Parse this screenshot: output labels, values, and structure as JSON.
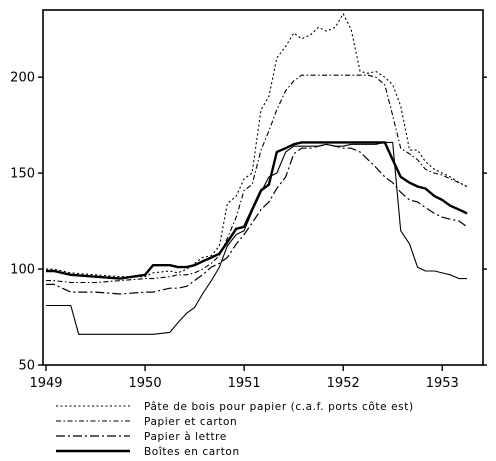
{
  "chart_data": {
    "type": "line",
    "title": "",
    "xlabel": "",
    "ylabel": "",
    "xlim": [
      1949.0,
      1953.3
    ],
    "ylim": [
      50,
      235
    ],
    "y_ticks": [
      50,
      100,
      150,
      200
    ],
    "x_ticks": [
      1949,
      1950,
      1951,
      1952,
      1953
    ],
    "x_tick_labels": [
      "1949",
      "1950",
      "1951",
      "1952",
      "1953"
    ],
    "grid": false,
    "legend_position": "bottom",
    "series": [
      {
        "name": "Pâte de bois pour papier (c.a.f. ports côte est)",
        "style": "dotted",
        "x": [
          1949.0,
          1949.08,
          1949.25,
          1949.5,
          1949.75,
          1950.0,
          1950.08,
          1950.25,
          1950.33,
          1950.42,
          1950.5,
          1950.58,
          1950.67,
          1950.75,
          1950.83,
          1950.92,
          1951.0,
          1951.08,
          1951.17,
          1951.25,
          1951.33,
          1951.42,
          1951.5,
          1951.58,
          1951.67,
          1951.75,
          1951.83,
          1951.92,
          1952.0,
          1952.08,
          1952.17,
          1952.25,
          1952.33,
          1952.42,
          1952.5,
          1952.58,
          1952.67,
          1952.75,
          1952.83,
          1952.92,
          1953.0,
          1953.08,
          1953.17,
          1953.25
        ],
        "values": [
          100,
          100,
          98,
          97,
          96,
          96,
          98,
          99,
          98,
          100,
          103,
          106,
          107,
          112,
          134,
          138,
          147,
          150,
          183,
          190,
          210,
          216,
          223,
          220,
          222,
          226,
          224,
          226,
          233,
          225,
          203,
          202,
          203,
          200,
          196,
          185,
          162,
          162,
          156,
          152,
          150,
          148,
          145,
          143
        ]
      },
      {
        "name": "Papier et carton",
        "style": "dashdot-short",
        "x": [
          1949.0,
          1949.08,
          1949.25,
          1949.5,
          1949.75,
          1950.0,
          1950.08,
          1950.25,
          1950.33,
          1950.42,
          1950.5,
          1950.58,
          1950.67,
          1950.75,
          1950.83,
          1950.92,
          1951.0,
          1951.08,
          1951.17,
          1951.25,
          1951.33,
          1951.42,
          1951.5,
          1951.58,
          1951.67,
          1951.75,
          1951.83,
          1951.92,
          1952.0,
          1952.08,
          1952.17,
          1952.25,
          1952.33,
          1952.42,
          1952.5,
          1952.58,
          1952.67,
          1952.75,
          1952.83,
          1952.92,
          1953.0,
          1953.08,
          1953.17,
          1953.25
        ],
        "values": [
          94,
          94,
          93,
          93,
          94,
          95,
          95,
          96,
          97,
          97,
          98,
          100,
          103,
          107,
          116,
          127,
          141,
          144,
          162,
          172,
          183,
          193,
          198,
          201,
          201,
          201,
          201,
          201,
          201,
          201,
          201,
          201,
          200,
          196,
          180,
          163,
          160,
          157,
          152,
          150,
          149,
          147,
          145,
          143
        ]
      },
      {
        "name": "Papier à lettre",
        "style": "dashdot-long",
        "x": [
          1949.0,
          1949.08,
          1949.25,
          1949.5,
          1949.75,
          1950.0,
          1950.08,
          1950.25,
          1950.33,
          1950.42,
          1950.5,
          1950.58,
          1950.67,
          1950.75,
          1950.83,
          1950.92,
          1951.0,
          1951.08,
          1951.17,
          1951.25,
          1951.33,
          1951.42,
          1951.5,
          1951.58,
          1951.67,
          1951.75,
          1951.83,
          1951.92,
          1952.0,
          1952.08,
          1952.17,
          1952.25,
          1952.33,
          1952.42,
          1952.5,
          1952.58,
          1952.67,
          1952.75,
          1952.83,
          1952.92,
          1953.0,
          1953.08,
          1953.17,
          1953.25
        ],
        "values": [
          92,
          92,
          88,
          88,
          87,
          88,
          88,
          90,
          90,
          91,
          94,
          97,
          101,
          103,
          106,
          113,
          118,
          124,
          131,
          135,
          142,
          148,
          160,
          163,
          163,
          164,
          165,
          164,
          163,
          163,
          161,
          157,
          153,
          148,
          145,
          140,
          136,
          135,
          132,
          129,
          127,
          126,
          125,
          122
        ]
      },
      {
        "name": "Boîtes en carton",
        "style": "bold",
        "x": [
          1949.0,
          1949.08,
          1949.25,
          1949.5,
          1949.75,
          1950.0,
          1950.08,
          1950.25,
          1950.33,
          1950.42,
          1950.5,
          1950.58,
          1950.67,
          1950.75,
          1950.83,
          1950.92,
          1951.0,
          1951.08,
          1951.17,
          1951.25,
          1951.33,
          1951.42,
          1951.5,
          1951.58,
          1951.67,
          1951.75,
          1951.83,
          1951.92,
          1952.0,
          1952.08,
          1952.17,
          1952.25,
          1952.33,
          1952.42,
          1952.5,
          1952.58,
          1952.67,
          1952.75,
          1952.83,
          1952.92,
          1953.0,
          1953.08,
          1953.17,
          1953.25
        ],
        "values": [
          99,
          99,
          97,
          96,
          95,
          97,
          102,
          102,
          101,
          101,
          102,
          104,
          106,
          108,
          114,
          121,
          122,
          131,
          141,
          144,
          161,
          163,
          165,
          166,
          166,
          166,
          166,
          166,
          166,
          166,
          166,
          166,
          166,
          166,
          157,
          148,
          145,
          143,
          142,
          138,
          136,
          133,
          131,
          129
        ]
      },
      {
        "name": "",
        "style": "thin",
        "x": [
          1949.0,
          1949.08,
          1949.25,
          1949.33,
          1949.5,
          1949.75,
          1950.0,
          1950.08,
          1950.25,
          1950.33,
          1950.42,
          1950.5,
          1950.58,
          1950.67,
          1950.75,
          1950.83,
          1950.92,
          1951.0,
          1951.08,
          1951.17,
          1951.25,
          1951.33,
          1951.42,
          1951.5,
          1951.58,
          1951.67,
          1951.75,
          1951.83,
          1951.92,
          1952.0,
          1952.08,
          1952.17,
          1952.25,
          1952.33,
          1952.42,
          1952.5,
          1952.58,
          1952.67,
          1952.75,
          1952.83,
          1952.92,
          1953.0,
          1953.08,
          1953.17,
          1953.25
        ],
        "values": [
          81,
          81,
          81,
          66,
          66,
          66,
          66,
          66,
          67,
          72,
          77,
          80,
          87,
          94,
          101,
          112,
          118,
          120,
          130,
          140,
          148,
          150,
          161,
          164,
          164,
          164,
          164,
          165,
          164,
          164,
          165,
          165,
          165,
          165,
          166,
          166,
          120,
          113,
          101,
          99,
          99,
          98,
          97,
          95,
          95
        ]
      }
    ]
  }
}
